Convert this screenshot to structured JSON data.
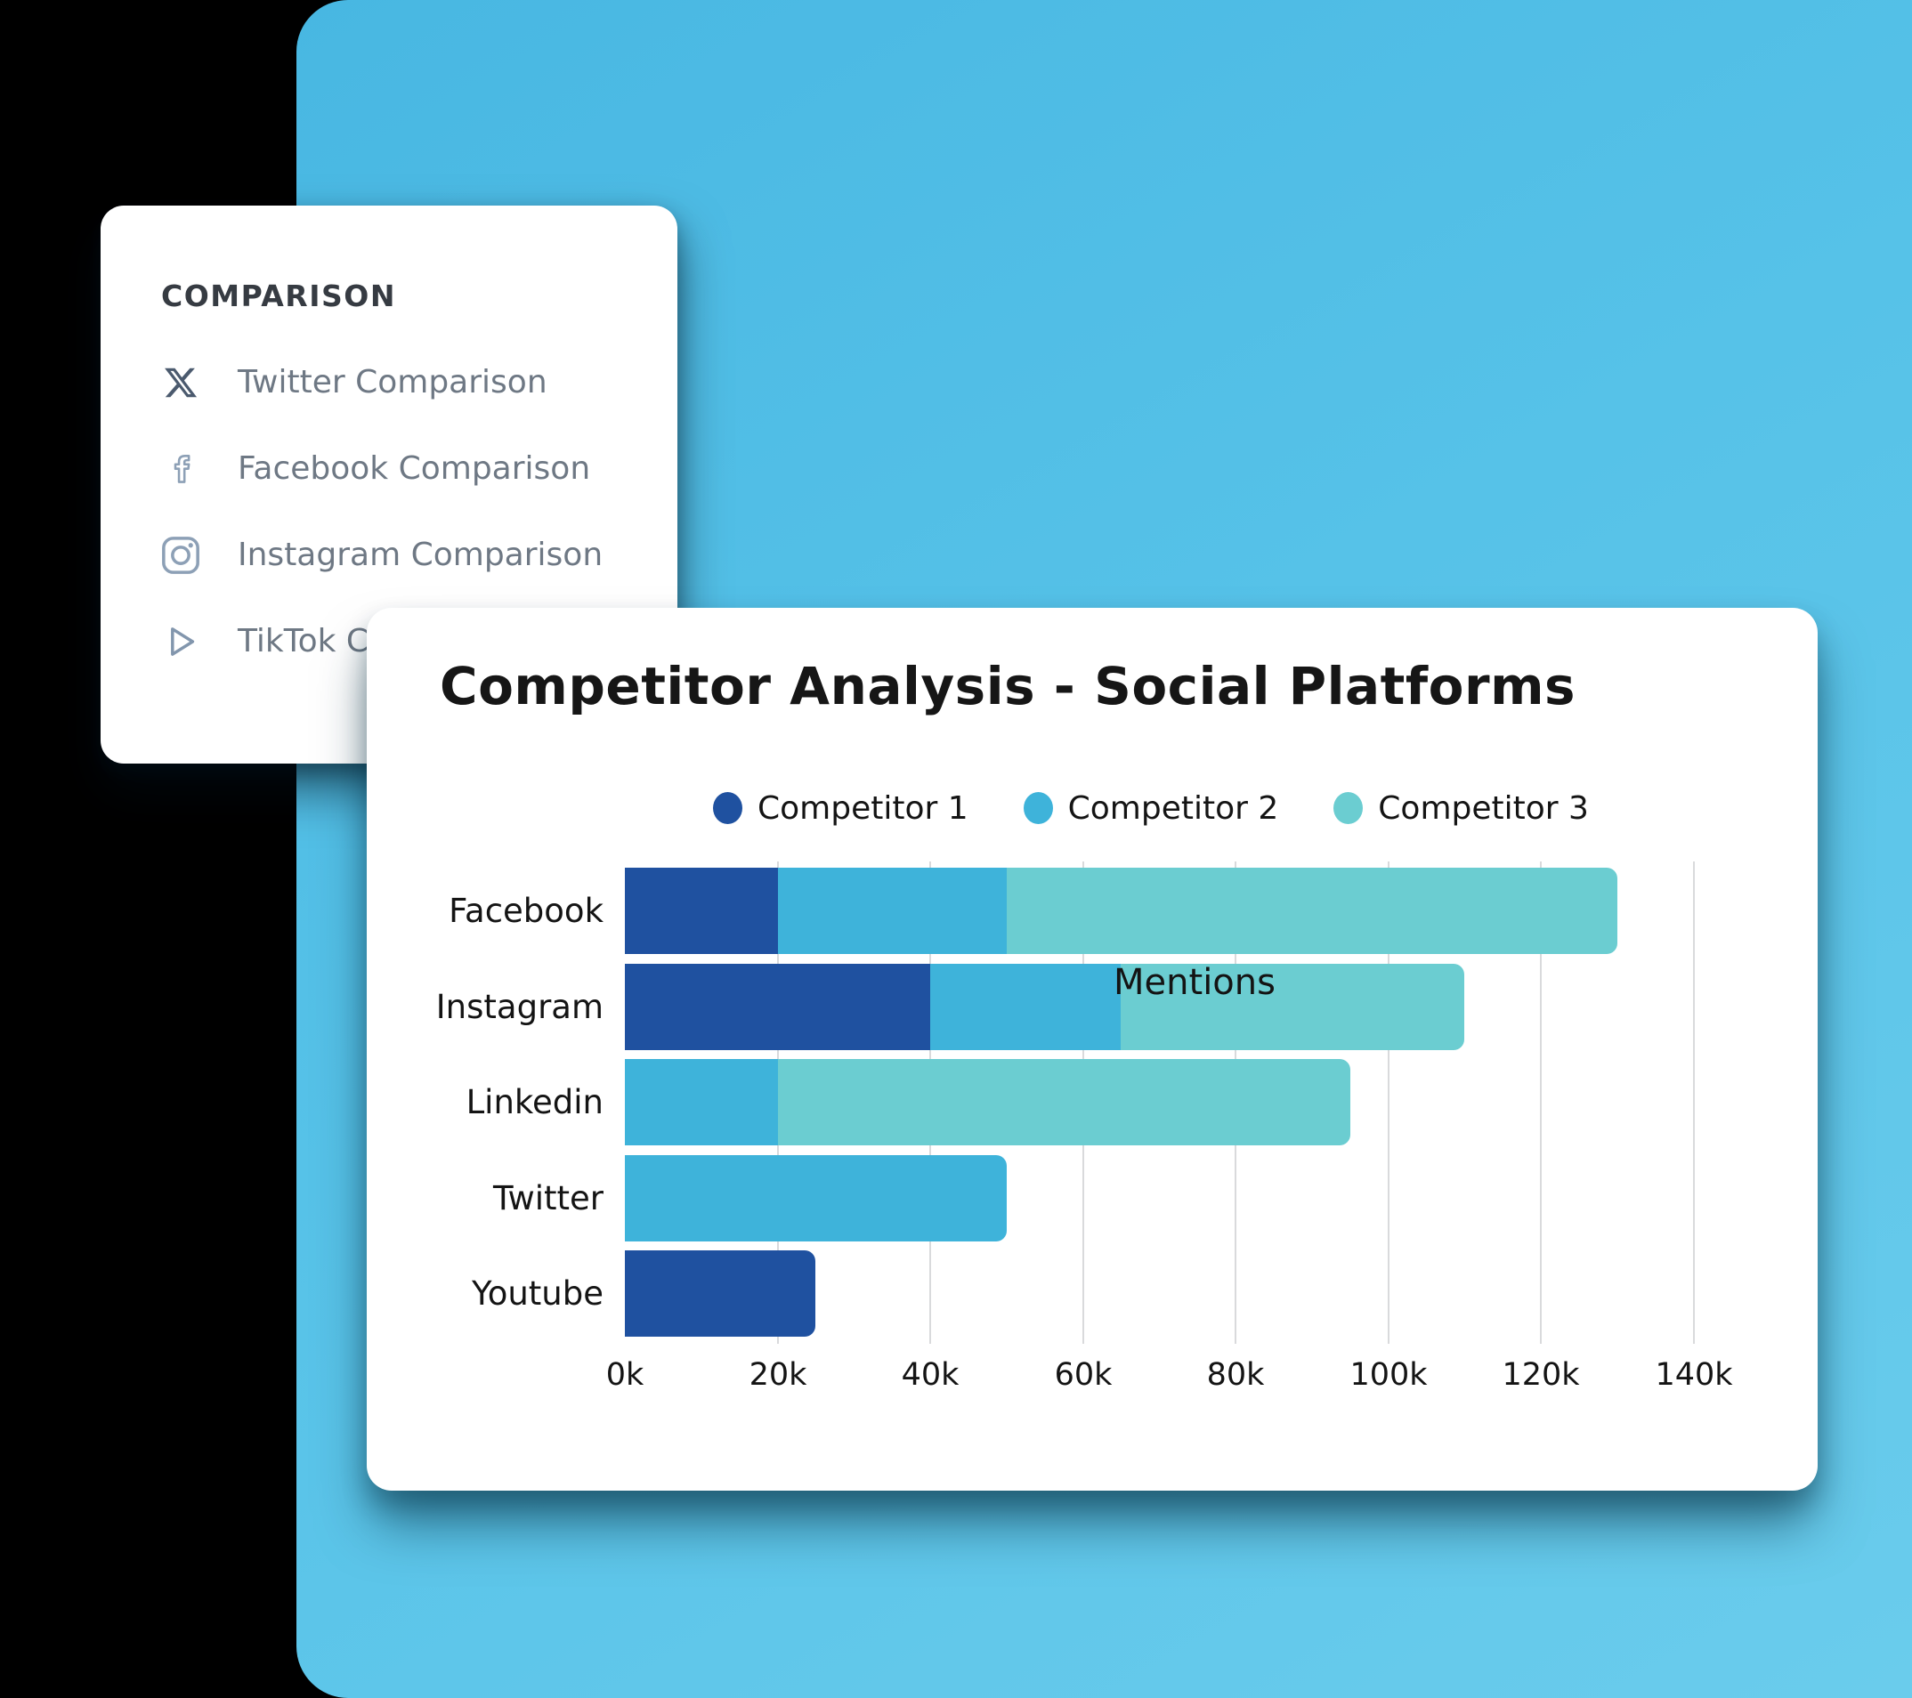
{
  "background": {
    "panel_color": "#56c2e8",
    "page_color": "#000000"
  },
  "comparison_panel": {
    "heading": "COMPARISON",
    "items": [
      {
        "key": "twitter",
        "icon": "x-twitter-icon",
        "label": "Twitter Comparison"
      },
      {
        "key": "facebook",
        "icon": "facebook-icon",
        "label": "Facebook Comparison"
      },
      {
        "key": "instagram",
        "icon": "instagram-icon",
        "label": "Instagram Comparison"
      },
      {
        "key": "tiktok",
        "icon": "tiktok-icon",
        "label": "TikTok Comparison"
      }
    ]
  },
  "chart_card": {
    "title": "Competitor Analysis - Social Platforms",
    "overlay_label": "Mentions",
    "legend": [
      {
        "label": "Competitor 1",
        "color": "#1f51a0"
      },
      {
        "label": "Competitor 2",
        "color": "#3eb3da"
      },
      {
        "label": "Competitor 3",
        "color": "#6bcdd1"
      }
    ]
  },
  "chart_data": {
    "type": "bar",
    "orientation": "horizontal",
    "stacked": true,
    "title": "Competitor Analysis - Social Platforms",
    "unit": "k",
    "categories": [
      "Facebook",
      "Instagram",
      "Linkedin",
      "Twitter",
      "Youtube"
    ],
    "series": [
      {
        "name": "Competitor 1",
        "color": "#1f51a0",
        "values": [
          20,
          40,
          0,
          0,
          25
        ]
      },
      {
        "name": "Competitor 2",
        "color": "#3eb3da",
        "values": [
          30,
          25,
          20,
          50,
          0
        ]
      },
      {
        "name": "Competitor 3",
        "color": "#6bcdd1",
        "values": [
          80,
          45,
          75,
          0,
          0
        ]
      }
    ],
    "totals": [
      130,
      110,
      95,
      50,
      25
    ],
    "x_ticks": [
      "0k",
      "20k",
      "40k",
      "60k",
      "80k",
      "100k",
      "120k",
      "140k"
    ],
    "xlim": [
      0,
      140
    ],
    "grid": "vertical",
    "legend_position": "top",
    "annotation": "Mentions"
  }
}
